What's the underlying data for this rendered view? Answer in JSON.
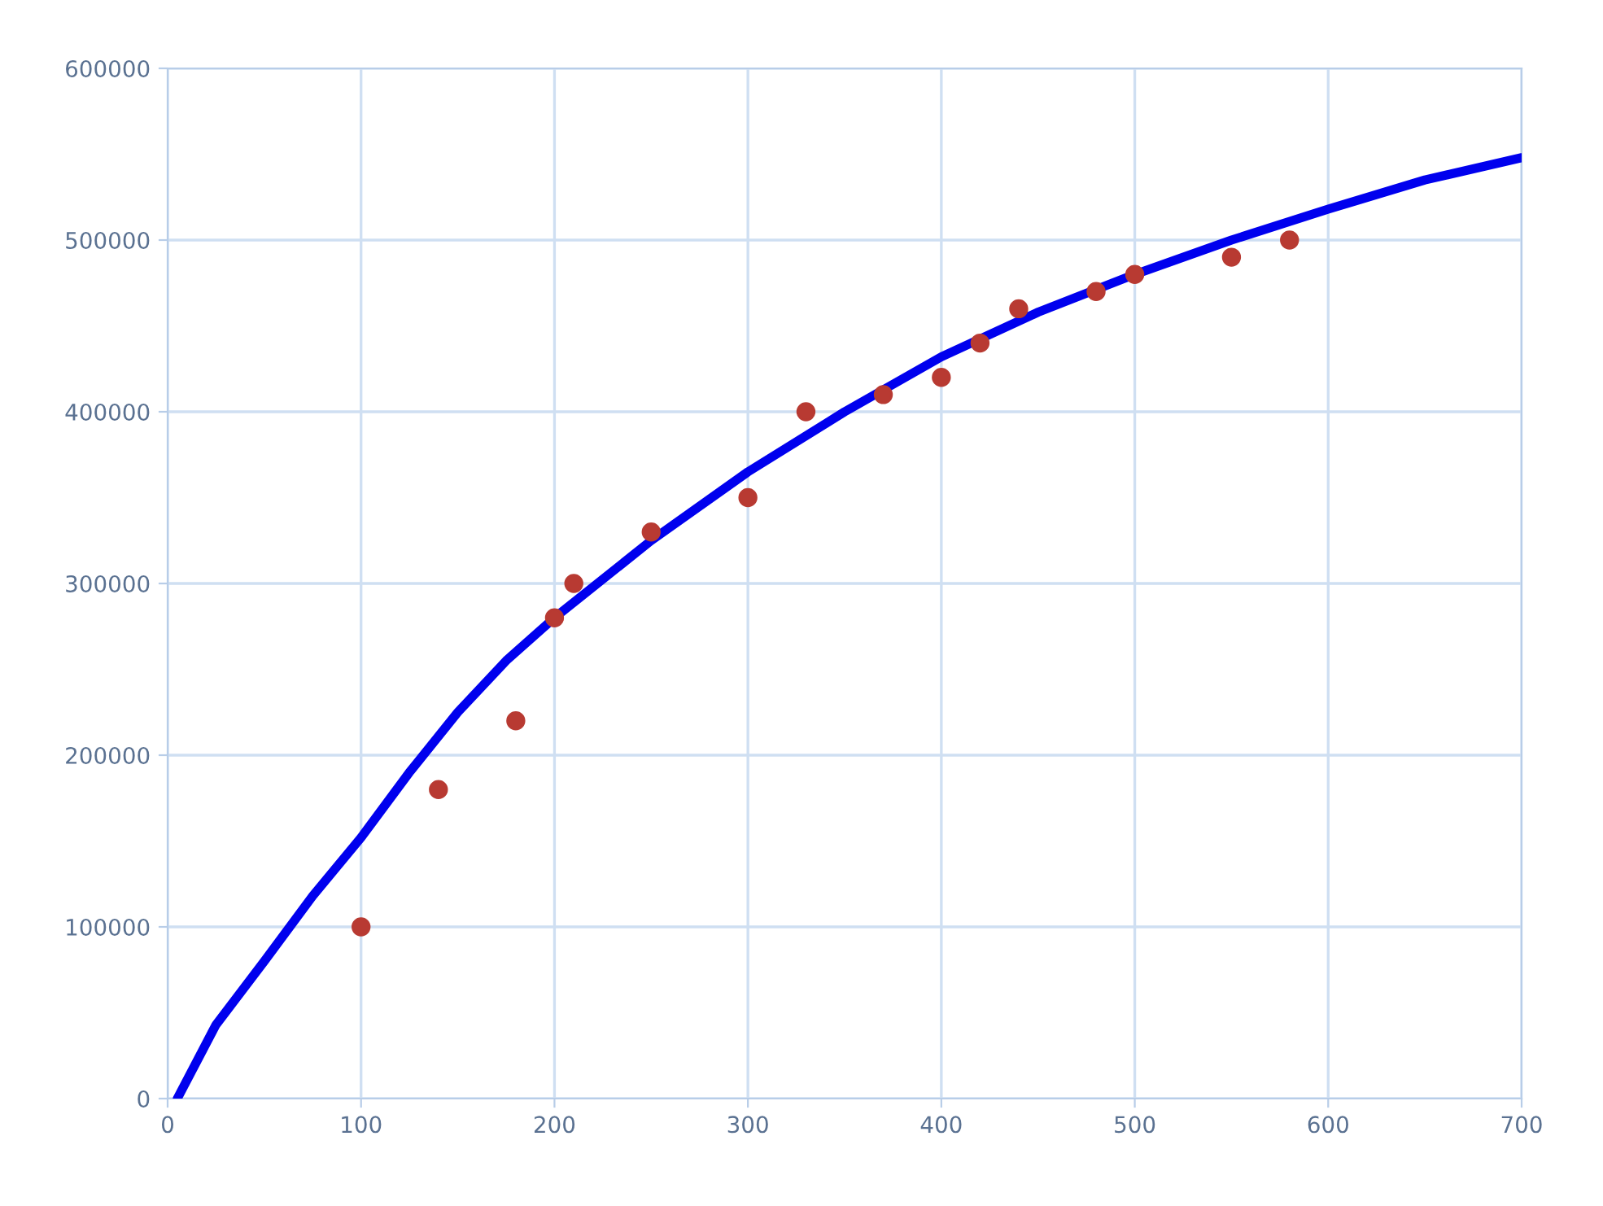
{
  "chart_data": {
    "type": "scatter",
    "xlim": [
      0,
      700
    ],
    "ylim": [
      0,
      600000
    ],
    "xticks": [
      0,
      100,
      200,
      300,
      400,
      500,
      600,
      700
    ],
    "yticks": [
      0,
      100000,
      200000,
      300000,
      400000,
      500000,
      600000
    ],
    "grid": true,
    "series": [
      {
        "type": "line",
        "color": "#0000ee",
        "marker": "none",
        "line_style": "solid",
        "x": [
          5,
          25,
          50,
          75,
          100,
          125,
          150,
          175,
          200,
          250,
          300,
          350,
          400,
          450,
          500,
          550,
          600,
          650,
          700
        ],
        "values": [
          0,
          43000,
          80000,
          118000,
          152000,
          190000,
          225000,
          255000,
          280000,
          325000,
          365000,
          400000,
          432000,
          458000,
          480000,
          500000,
          518000,
          535000,
          548000
        ]
      },
      {
        "color": "#b83a32",
        "marker": "circle",
        "x": [
          100,
          140,
          180,
          200,
          210,
          250,
          300,
          330,
          370,
          400,
          420,
          440,
          480,
          500,
          550,
          580
        ],
        "values": [
          100000,
          180000,
          220000,
          280000,
          300000,
          330000,
          350000,
          400000,
          410000,
          420000,
          440000,
          460000,
          470000,
          480000,
          490000,
          500000
        ]
      }
    ]
  }
}
